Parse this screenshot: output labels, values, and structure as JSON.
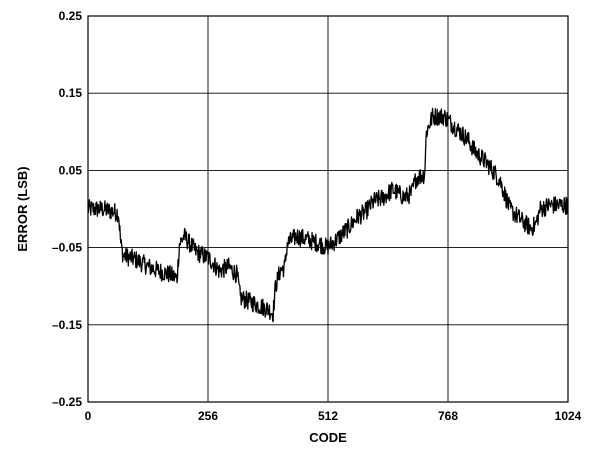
{
  "chart_data": {
    "type": "line",
    "title": "",
    "xlabel": "CODE",
    "ylabel": "ERROR (LSB)",
    "xlim": [
      0,
      1024
    ],
    "ylim": [
      -0.25,
      0.25
    ],
    "x_ticks": [
      0,
      256,
      512,
      768,
      1024
    ],
    "x_tick_labels": [
      "0",
      "256",
      "512",
      "768",
      "1024"
    ],
    "y_ticks": [
      0.25,
      0.15,
      0.05,
      -0.05,
      -0.15,
      -0.25
    ],
    "y_tick_labels": [
      "0.25",
      "0.15",
      "0.05",
      "–0.05",
      "–0.15",
      "–0.25"
    ],
    "grid": true,
    "legend": "none",
    "line_color": "#000000",
    "series": [
      {
        "trend": [
          [
            0,
            0.0
          ],
          [
            30,
            0.0
          ],
          [
            65,
            -0.005
          ],
          [
            70,
            -0.045
          ],
          [
            75,
            -0.06
          ],
          [
            100,
            -0.065
          ],
          [
            130,
            -0.075
          ],
          [
            150,
            -0.08
          ],
          [
            175,
            -0.085
          ],
          [
            190,
            -0.09
          ],
          [
            195,
            -0.045
          ],
          [
            205,
            -0.035
          ],
          [
            230,
            -0.055
          ],
          [
            260,
            -0.065
          ],
          [
            280,
            -0.08
          ],
          [
            300,
            -0.075
          ],
          [
            318,
            -0.085
          ],
          [
            325,
            -0.115
          ],
          [
            345,
            -0.12
          ],
          [
            365,
            -0.125
          ],
          [
            385,
            -0.13
          ],
          [
            395,
            -0.135
          ],
          [
            400,
            -0.1
          ],
          [
            410,
            -0.08
          ],
          [
            420,
            -0.075
          ],
          [
            425,
            -0.045
          ],
          [
            445,
            -0.035
          ],
          [
            470,
            -0.04
          ],
          [
            495,
            -0.045
          ],
          [
            510,
            -0.05
          ],
          [
            530,
            -0.04
          ],
          [
            555,
            -0.025
          ],
          [
            575,
            -0.01
          ],
          [
            590,
            -0.005
          ],
          [
            610,
            0.01
          ],
          [
            630,
            0.015
          ],
          [
            650,
            0.025
          ],
          [
            675,
            0.015
          ],
          [
            690,
            0.02
          ],
          [
            700,
            0.04
          ],
          [
            718,
            0.045
          ],
          [
            722,
            0.1
          ],
          [
            735,
            0.12
          ],
          [
            760,
            0.12
          ],
          [
            785,
            0.105
          ],
          [
            810,
            0.09
          ],
          [
            825,
            0.075
          ],
          [
            850,
            0.06
          ],
          [
            870,
            0.045
          ],
          [
            880,
            0.035
          ],
          [
            900,
            0.0
          ],
          [
            925,
            -0.015
          ],
          [
            945,
            -0.025
          ],
          [
            955,
            -0.02
          ],
          [
            965,
            0.0
          ],
          [
            985,
            0.005
          ],
          [
            1024,
            0.005
          ]
        ],
        "noise_amplitude": 0.012
      }
    ]
  }
}
